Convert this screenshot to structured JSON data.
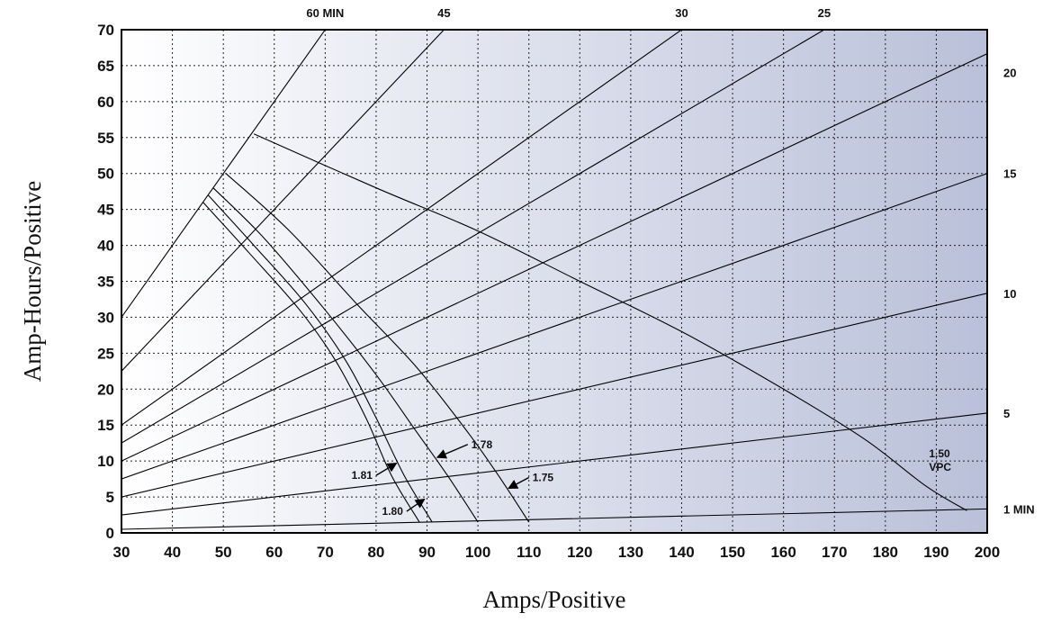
{
  "chart_data": {
    "type": "line",
    "title": "",
    "xlabel": "Amps/Positive",
    "ylabel": "Amp-Hours/Positive",
    "xlim": [
      30,
      200
    ],
    "ylim": [
      0,
      70
    ],
    "x_ticks": [
      "30",
      "40",
      "50",
      "60",
      "70",
      "80",
      "90",
      "100",
      "110",
      "120",
      "130",
      "140",
      "150",
      "160",
      "170",
      "180",
      "190",
      "200"
    ],
    "y_ticks": [
      "0",
      "5",
      "10",
      "15",
      "20",
      "25",
      "30",
      "35",
      "40",
      "45",
      "50",
      "55",
      "60",
      "65",
      "70"
    ],
    "grid": true,
    "discharge_time_lines": [
      {
        "label": "1 MIN",
        "ah_per_amp": 0.01667
      },
      {
        "label": "5",
        "ah_per_amp": 0.08333
      },
      {
        "label": "10",
        "ah_per_amp": 0.16667
      },
      {
        "label": "15",
        "ah_per_amp": 0.25
      },
      {
        "label": "20",
        "ah_per_amp": 0.33333
      },
      {
        "label": "25",
        "ah_per_amp": 0.41667
      },
      {
        "label": "30",
        "ah_per_amp": 0.5
      },
      {
        "label": "45",
        "ah_per_amp": 0.75
      },
      {
        "label": "60 MIN",
        "ah_per_amp": 1.0
      }
    ],
    "voltage_curves": [
      {
        "label": "1.81",
        "points": [
          [
            46,
            46
          ],
          [
            55,
            39
          ],
          [
            65,
            31
          ],
          [
            72,
            24
          ],
          [
            78,
            16
          ],
          [
            83,
            8
          ],
          [
            88.5,
            1.5
          ]
        ]
      },
      {
        "label": "1.80",
        "points": [
          [
            47,
            47
          ],
          [
            56,
            40
          ],
          [
            66,
            32
          ],
          [
            74,
            24
          ],
          [
            80,
            16
          ],
          [
            85.5,
            8
          ],
          [
            91,
            1.5
          ]
        ]
      },
      {
        "label": "1.78",
        "points": [
          [
            48,
            48
          ],
          [
            58,
            41
          ],
          [
            70,
            31
          ],
          [
            80,
            22
          ],
          [
            88,
            14
          ],
          [
            94,
            8
          ],
          [
            100,
            1.5
          ]
        ]
      },
      {
        "label": "1.75",
        "points": [
          [
            50.5,
            50
          ],
          [
            63,
            42
          ],
          [
            76,
            32
          ],
          [
            88,
            23
          ],
          [
            98,
            14
          ],
          [
            104,
            8
          ],
          [
            110,
            1.5
          ]
        ]
      },
      {
        "label": "1.50\nVPC",
        "points": [
          [
            56,
            55.5
          ],
          [
            80,
            48
          ],
          [
            100,
            42
          ],
          [
            120,
            35
          ],
          [
            140,
            28
          ],
          [
            160,
            20
          ],
          [
            176,
            13
          ],
          [
            188,
            6.5
          ],
          [
            196,
            3.1
          ]
        ]
      }
    ],
    "annotations": [
      {
        "text": "1.81",
        "arrow_from": [
          80,
          8
        ],
        "arrow_to": [
          84,
          9.7
        ]
      },
      {
        "text": "1.80",
        "arrow_from": [
          86,
          3
        ],
        "arrow_to": [
          89.5,
          4.7
        ]
      },
      {
        "text": "1.78",
        "arrow_from": [
          98,
          12.3
        ],
        "arrow_to": [
          92,
          10.5
        ]
      },
      {
        "text": "1.75",
        "arrow_from": [
          110,
          7.7
        ],
        "arrow_to": [
          106,
          6.2
        ]
      }
    ],
    "background_gradient": [
      "#ffffff",
      "#b9c0d9"
    ]
  }
}
